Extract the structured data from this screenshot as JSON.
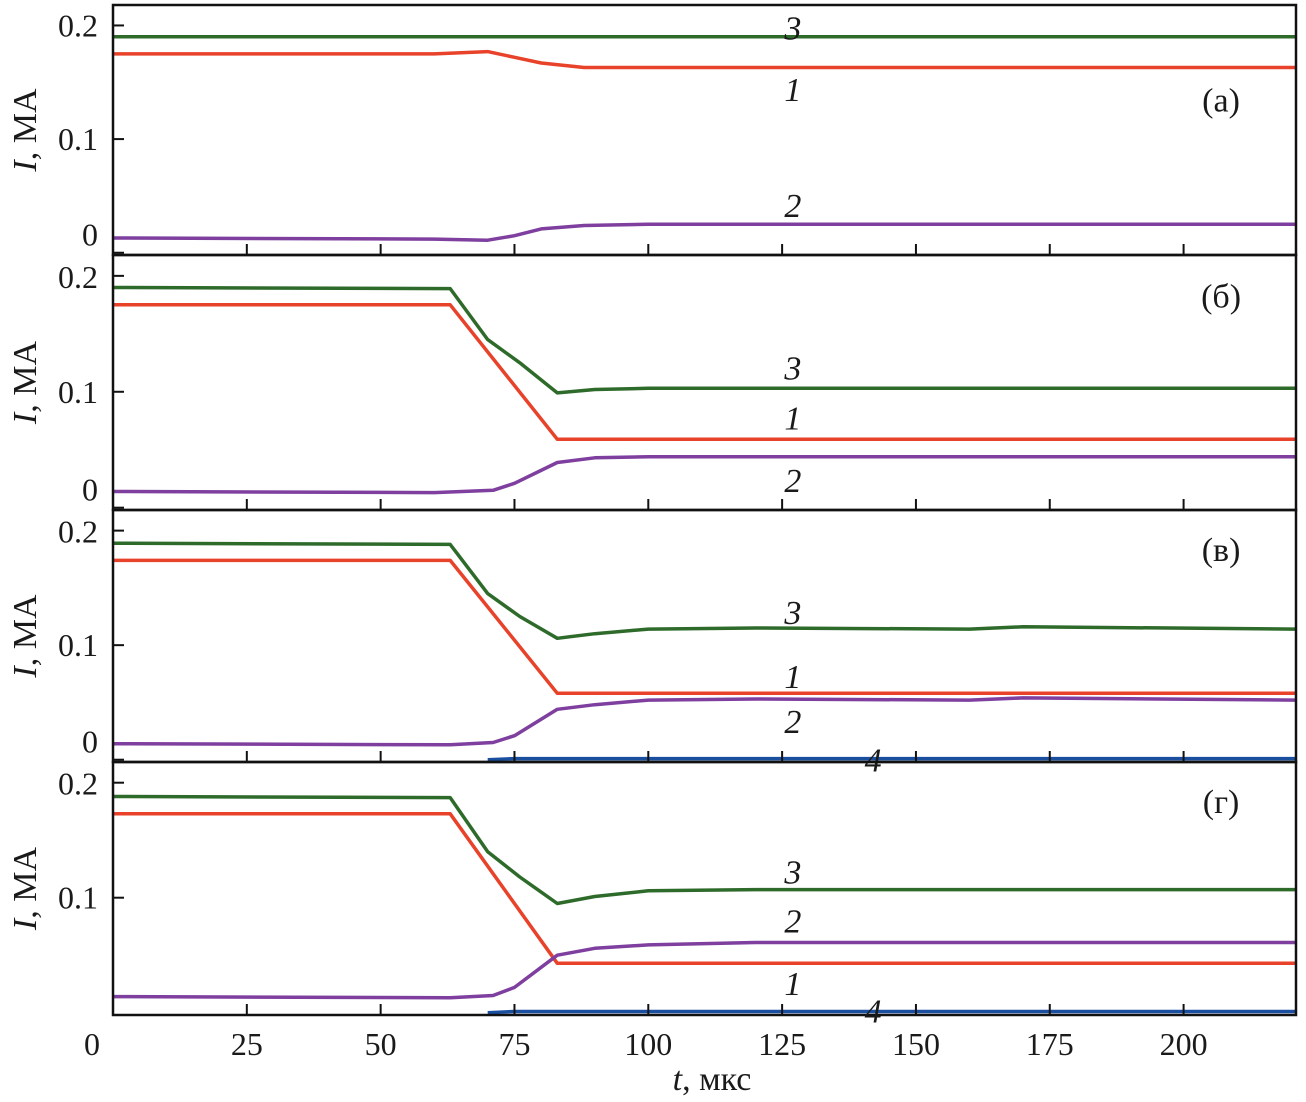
{
  "chart_data": {
    "type": "line",
    "xlabel": {
      "var": "t",
      "unit": ", мкс"
    },
    "ylabel": {
      "var": "I",
      "unit": ", МА"
    },
    "xlim": [
      0,
      221
    ],
    "xticks": [
      0,
      25,
      50,
      75,
      100,
      125,
      150,
      175,
      200
    ],
    "xtick_labels": [
      "0",
      "25",
      "50",
      "75",
      "100",
      "125",
      "150",
      "175",
      "200"
    ],
    "grid": false,
    "colors": {
      "1": "#e8432a",
      "2": "#7f3f9f",
      "3": "#2e6b2a",
      "4": "#1a4fa0"
    },
    "panels": [
      {
        "label": "(а)",
        "label_pos": [
          207,
          0.135
        ],
        "ylim": [
          -0.002,
          0.218
        ],
        "yticks": [
          0,
          0.1,
          0.2
        ],
        "ytick_labels": [
          "0",
          "0.1",
          "0.2"
        ],
        "series": [
          {
            "id": "3",
            "points": [
              [
                0,
                0.19
              ],
              [
                221,
                0.19
              ]
            ]
          },
          {
            "id": "1",
            "points": [
              [
                0,
                0.175
              ],
              [
                60,
                0.175
              ],
              [
                70,
                0.177
              ],
              [
                75,
                0.172
              ],
              [
                80,
                0.167
              ],
              [
                88,
                0.163
              ],
              [
                221,
                0.163
              ]
            ]
          },
          {
            "id": "2",
            "points": [
              [
                0,
                0.013
              ],
              [
                60,
                0.012
              ],
              [
                70,
                0.011
              ],
              [
                75,
                0.015
              ],
              [
                80,
                0.021
              ],
              [
                88,
                0.024
              ],
              [
                100,
                0.025
              ],
              [
                221,
                0.025
              ]
            ]
          }
        ],
        "curve_labels": [
          {
            "text": "3",
            "x": 127,
            "y": 0.198
          },
          {
            "text": "1",
            "x": 127,
            "y": 0.144
          },
          {
            "text": "2",
            "x": 127,
            "y": 0.042
          }
        ]
      },
      {
        "label": "(б)",
        "label_pos": [
          207,
          0.183
        ],
        "ylim": [
          -0.002,
          0.218
        ],
        "yticks": [
          0,
          0.1,
          0.2
        ],
        "ytick_labels": [
          "0",
          "0.1",
          "0.2"
        ],
        "series": [
          {
            "id": "3",
            "points": [
              [
                0,
                0.19
              ],
              [
                63,
                0.189
              ],
              [
                70,
                0.145
              ],
              [
                76,
                0.125
              ],
              [
                83,
                0.099
              ],
              [
                90,
                0.102
              ],
              [
                100,
                0.103
              ],
              [
                221,
                0.103
              ]
            ]
          },
          {
            "id": "1",
            "points": [
              [
                0,
                0.175
              ],
              [
                63,
                0.175
              ],
              [
                83,
                0.059
              ],
              [
                221,
                0.059
              ]
            ]
          },
          {
            "id": "2",
            "points": [
              [
                0,
                0.014
              ],
              [
                60,
                0.013
              ],
              [
                71,
                0.015
              ],
              [
                75,
                0.021
              ],
              [
                83,
                0.039
              ],
              [
                90,
                0.043
              ],
              [
                100,
                0.044
              ],
              [
                221,
                0.044
              ]
            ]
          }
        ],
        "curve_labels": [
          {
            "text": "3",
            "x": 127,
            "y": 0.121
          },
          {
            "text": "1",
            "x": 127,
            "y": 0.078
          },
          {
            "text": "2",
            "x": 127,
            "y": 0.024
          }
        ]
      },
      {
        "label": "(в)",
        "label_pos": [
          207,
          0.184
        ],
        "ylim": [
          -0.002,
          0.218
        ],
        "yticks": [
          0,
          0.1,
          0.2
        ],
        "ytick_labels": [
          "0",
          "0.1",
          "0.2"
        ],
        "series": [
          {
            "id": "3",
            "points": [
              [
                0,
                0.189
              ],
              [
                63,
                0.188
              ],
              [
                70,
                0.145
              ],
              [
                76,
                0.125
              ],
              [
                83,
                0.106
              ],
              [
                90,
                0.11
              ],
              [
                100,
                0.114
              ],
              [
                120,
                0.115
              ],
              [
                160,
                0.114
              ],
              [
                170,
                0.116
              ],
              [
                221,
                0.114
              ]
            ]
          },
          {
            "id": "1",
            "points": [
              [
                0,
                0.174
              ],
              [
                63,
                0.174
              ],
              [
                83,
                0.058
              ],
              [
                221,
                0.058
              ]
            ]
          },
          {
            "id": "2",
            "points": [
              [
                0,
                0.014
              ],
              [
                63,
                0.013
              ],
              [
                71,
                0.015
              ],
              [
                75,
                0.021
              ],
              [
                83,
                0.044
              ],
              [
                90,
                0.048
              ],
              [
                100,
                0.052
              ],
              [
                120,
                0.053
              ],
              [
                160,
                0.052
              ],
              [
                170,
                0.054
              ],
              [
                221,
                0.052
              ]
            ]
          },
          {
            "id": "4",
            "points": [
              [
                70,
                0
              ],
              [
                75,
                0.001
              ],
              [
                221,
                0.001
              ]
            ]
          }
        ],
        "curve_labels": [
          {
            "text": "3",
            "x": 127,
            "y": 0.129
          },
          {
            "text": "1",
            "x": 127,
            "y": 0.073
          },
          {
            "text": "2",
            "x": 127,
            "y": 0.034
          },
          {
            "text": "4",
            "x": 142,
            "y": 0.0
          }
        ]
      },
      {
        "label": "(г)",
        "label_pos": [
          207,
          0.184
        ],
        "ylim": [
          -0.002,
          0.218
        ],
        "yticks": [
          0.1,
          0.2
        ],
        "ytick_labels": [
          "0.1",
          "0.2"
        ],
        "series": [
          {
            "id": "3",
            "points": [
              [
                0,
                0.188
              ],
              [
                63,
                0.187
              ],
              [
                70,
                0.14
              ],
              [
                76,
                0.118
              ],
              [
                83,
                0.095
              ],
              [
                90,
                0.101
              ],
              [
                100,
                0.106
              ],
              [
                120,
                0.107
              ],
              [
                221,
                0.107
              ]
            ]
          },
          {
            "id": "1",
            "points": [
              [
                0,
                0.173
              ],
              [
                63,
                0.173
              ],
              [
                83,
                0.043
              ],
              [
                221,
                0.043
              ]
            ]
          },
          {
            "id": "2",
            "points": [
              [
                0,
                0.014
              ],
              [
                63,
                0.013
              ],
              [
                71,
                0.015
              ],
              [
                75,
                0.022
              ],
              [
                83,
                0.05
              ],
              [
                90,
                0.056
              ],
              [
                100,
                0.059
              ],
              [
                120,
                0.061
              ],
              [
                221,
                0.061
              ]
            ]
          },
          {
            "id": "4",
            "points": [
              [
                70,
                0
              ],
              [
                75,
                0.001
              ],
              [
                221,
                0.001
              ]
            ]
          }
        ],
        "curve_labels": [
          {
            "text": "3",
            "x": 127,
            "y": 0.123
          },
          {
            "text": "2",
            "x": 127,
            "y": 0.08
          },
          {
            "text": "1",
            "x": 127,
            "y": 0.026
          },
          {
            "text": "4",
            "x": 142,
            "y": 0.002
          }
        ]
      }
    ]
  }
}
